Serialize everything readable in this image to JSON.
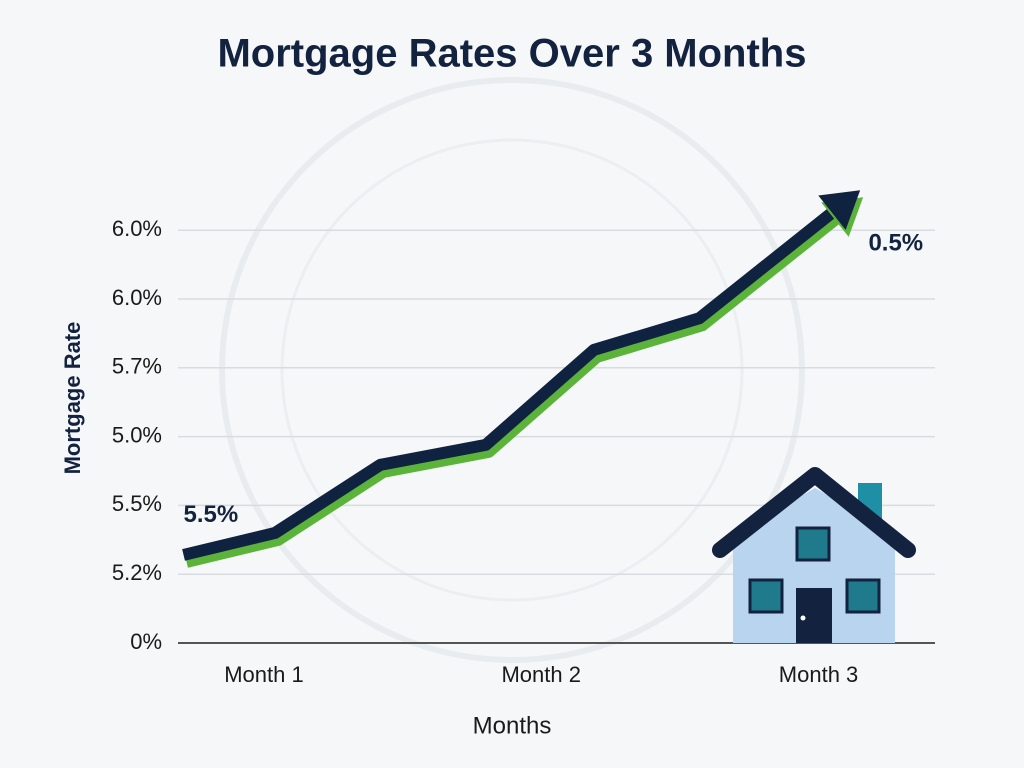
{
  "chart_data": {
    "type": "line",
    "title": "Mortgage Rates Over 3 Months",
    "x_label": "Months",
    "y_label": "Mortgage Rate",
    "x": [
      0.71,
      1.04,
      1.42,
      1.8,
      2.19,
      2.57,
      3.15
    ],
    "series": [
      {
        "name": "Mortgage Rate",
        "color": "#0f2340",
        "values": [
          1.28,
          1.6,
          2.59,
          2.88,
          4.26,
          4.72,
          6.58
        ]
      }
    ],
    "shadow_color": "#5bb33a",
    "xlim": [
      0.69,
      3.42
    ],
    "xticks": [
      {
        "value": 1,
        "label": "Month 1"
      },
      {
        "value": 2,
        "label": "Month 2"
      },
      {
        "value": 3,
        "label": "Month 3"
      }
    ],
    "ylim": [
      0,
      7
    ],
    "yticks": [
      {
        "value": 0,
        "label": "0%"
      },
      {
        "value": 1,
        "label": "5.2%"
      },
      {
        "value": 2,
        "label": "5.5%"
      },
      {
        "value": 3,
        "label": "5.0%"
      },
      {
        "value": 4,
        "label": "5.7%"
      },
      {
        "value": 5,
        "label": "6.0%"
      },
      {
        "value": 6,
        "label": "6.0%"
      }
    ],
    "grid": true,
    "annotations": [
      {
        "text": "5.5%",
        "x": 0.71,
        "y": 1.85
      },
      {
        "text": "0.5%",
        "x": 3.18,
        "y": 5.8
      }
    ]
  }
}
